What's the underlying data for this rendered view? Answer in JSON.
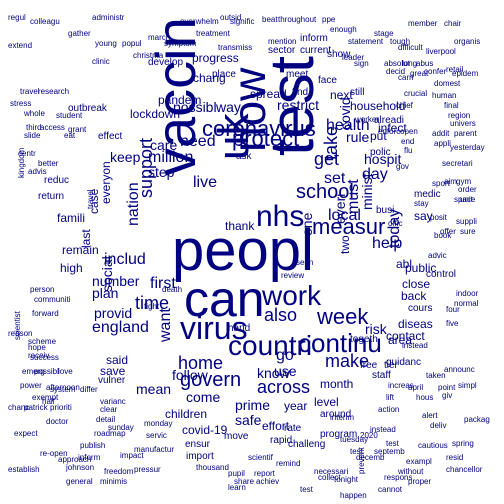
{
  "title": "",
  "colors": {
    "background": "#ffffff",
    "word": "#000080"
  },
  "words": [
    {
      "text": "peopl"
    },
    {
      "text": "test"
    },
    {
      "text": "vaccin"
    },
    {
      "text": "can"
    },
    {
      "text": "uk"
    },
    {
      "text": "now"
    },
    {
      "text": "nhs"
    },
    {
      "text": "virus"
    },
    {
      "text": "countri"
    },
    {
      "text": "work"
    },
    {
      "text": "coronavirus"
    },
    {
      "text": "continu"
    },
    {
      "text": "protect"
    },
    {
      "text": "week"
    },
    {
      "text": "measur"
    },
    {
      "text": "school"
    },
    {
      "text": "govern"
    },
    {
      "text": "across"
    },
    {
      "text": "support"
    },
    {
      "text": "also"
    },
    {
      "text": "home"
    },
    {
      "text": "time"
    },
    {
      "text": "get"
    },
    {
      "text": "take"
    },
    {
      "text": "make"
    },
    {
      "text": "health"
    },
    {
      "text": "million"
    },
    {
      "text": "need"
    },
    {
      "text": "includ"
    },
    {
      "text": "first"
    },
    {
      "text": "local"
    },
    {
      "text": "day"
    },
    {
      "text": "go"
    },
    {
      "text": "use"
    },
    {
      "text": "know"
    },
    {
      "text": "set"
    },
    {
      "text": "help"
    },
    {
      "text": "today"
    },
    {
      "text": "nation"
    },
    {
      "text": "say"
    },
    {
      "text": "hospit"
    },
    {
      "text": "come"
    },
    {
      "text": "one"
    },
    {
      "text": "way"
    },
    {
      "text": "possibl"
    },
    {
      "text": "live"
    },
    {
      "text": "step"
    },
    {
      "text": "keep"
    },
    {
      "text": "care"
    },
    {
      "text": "want"
    },
    {
      "text": "must"
    },
    {
      "text": "minist"
    },
    {
      "text": "everi"
    },
    {
      "text": "restrict"
    },
    {
      "text": "england"
    },
    {
      "text": "number"
    },
    {
      "text": "plan"
    },
    {
      "text": "provid"
    },
    {
      "text": "social"
    },
    {
      "text": "safe"
    },
    {
      "text": "prime"
    },
    {
      "text": "mean"
    },
    {
      "text": "children"
    },
    {
      "text": "year"
    },
    {
      "text": "month"
    },
    {
      "text": "level"
    },
    {
      "text": "risk"
    },
    {
      "text": "area"
    },
    {
      "text": "contact"
    },
    {
      "text": "diseas"
    },
    {
      "text": "back"
    },
    {
      "text": "close"
    },
    {
      "text": "public"
    },
    {
      "text": "rule"
    },
    {
      "text": "put"
    },
    {
      "text": "pandem"
    },
    {
      "text": "lockdown"
    },
    {
      "text": "follow"
    },
    {
      "text": "effort"
    },
    {
      "text": "two"
    },
    {
      "text": "abl"
    },
    {
      "text": "remain"
    },
    {
      "text": "high"
    },
    {
      "text": "last"
    },
    {
      "text": "case"
    },
    {
      "text": "everyon"
    },
    {
      "text": "covid"
    },
    {
      "text": "covid-19"
    },
    {
      "text": "save"
    },
    {
      "text": "said"
    },
    {
      "text": "vulner"
    },
    {
      "text": "program"
    },
    {
      "text": "around"
    },
    {
      "text": "staff"
    },
    {
      "text": "free"
    },
    {
      "text": "tier"
    },
    {
      "text": "togeth"
    },
    {
      "text": "infect"
    },
    {
      "text": "household"
    },
    {
      "text": "spread"
    },
    {
      "text": "thank"
    },
    {
      "text": "ask"
    },
    {
      "text": "find"
    },
    {
      "text": "face"
    },
    {
      "text": "place"
    },
    {
      "text": "meet"
    },
    {
      "text": "next"
    },
    {
      "text": "still"
    },
    {
      "text": "busi"
    },
    {
      "text": "hand"
    },
    {
      "text": "review"
    },
    {
      "text": "death"
    },
    {
      "text": "fight"
    },
    {
      "text": "seen"
    },
    {
      "text": "current"
    },
    {
      "text": "inform"
    },
    {
      "text": "sector"
    },
    {
      "text": "progress"
    },
    {
      "text": "chang"
    },
    {
      "text": "develop"
    },
    {
      "text": "travel"
    },
    {
      "text": "outbreak"
    },
    {
      "text": "famili"
    },
    {
      "text": "move"
    },
    {
      "text": "rate"
    },
    {
      "text": "ensur"
    },
    {
      "text": "rapid"
    },
    {
      "text": "import"
    },
    {
      "text": "challeng"
    },
    {
      "text": "scientif"
    },
    {
      "text": "instead"
    },
    {
      "text": "cours"
    },
    {
      "text": "control"
    },
    {
      "text": "guidanc"
    },
    {
      "text": "medic"
    },
    {
      "text": "alreadi"
    },
    {
      "text": "polic"
    },
    {
      "text": "gov"
    },
    {
      "text": "pressur"
    },
    {
      "text": "freedom"
    },
    {
      "text": "chief"
    },
    {
      "text": "appli"
    },
    {
      "text": "enforc"
    },
    {
      "text": "open"
    },
    {
      "text": "end"
    },
    {
      "text": "show"
    },
    {
      "text": "sign"
    },
    {
      "text": "offic"
    },
    {
      "text": "advic"
    },
    {
      "text": "flu"
    },
    {
      "text": "book"
    },
    {
      "text": "posit"
    },
    {
      "text": "stay"
    },
    {
      "text": "access"
    },
    {
      "text": "worker"
    },
    {
      "text": "clinic"
    },
    {
      "text": "reduc"
    },
    {
      "text": "effect"
    },
    {
      "text": "return"
    },
    {
      "text": "person"
    },
    {
      "text": "communiti"
    },
    {
      "text": "student"
    },
    {
      "text": "forward"
    },
    {
      "text": "christma"
    },
    {
      "text": "research"
    },
    {
      "text": "five"
    },
    {
      "text": "four"
    },
    {
      "text": "indoor"
    },
    {
      "text": "normal"
    },
    {
      "text": "increas"
    },
    {
      "text": "action"
    },
    {
      "text": "announc"
    },
    {
      "text": "exempt"
    },
    {
      "text": "varianc"
    },
    {
      "text": "clear"
    },
    {
      "text": "manufactur"
    },
    {
      "text": "inform"
    },
    {
      "text": "servic"
    },
    {
      "text": "monday"
    },
    {
      "text": "tuesday"
    },
    {
      "text": "test"
    },
    {
      "text": "overwhelm"
    },
    {
      "text": "treatment"
    },
    {
      "text": "symptom"
    },
    {
      "text": "gather"
    },
    {
      "text": "extend"
    },
    {
      "text": "young"
    },
    {
      "text": "popul"
    },
    {
      "text": "march"
    },
    {
      "text": "transmiss"
    },
    {
      "text": "mention"
    },
    {
      "text": "signific"
    },
    {
      "text": "throughout"
    },
    {
      "text": "enough"
    },
    {
      "text": "statement"
    },
    {
      "text": "difficult"
    },
    {
      "text": "absolut"
    },
    {
      "text": "chair"
    },
    {
      "text": "organis"
    },
    {
      "text": "liverpool"
    },
    {
      "text": "member"
    },
    {
      "text": "crucial"
    },
    {
      "text": "leader"
    },
    {
      "text": "retail"
    },
    {
      "text": "epidem"
    },
    {
      "text": "domest"
    },
    {
      "text": "human"
    },
    {
      "text": "final"
    },
    {
      "text": "region"
    },
    {
      "text": "univers"
    },
    {
      "text": "addit"
    },
    {
      "text": "parent"
    },
    {
      "text": "yesterday"
    },
    {
      "text": "secretari"
    },
    {
      "text": "aim"
    },
    {
      "text": "gym"
    },
    {
      "text": "order"
    },
    {
      "text": "space"
    },
    {
      "text": "sport"
    },
    {
      "text": "suppli"
    },
    {
      "text": "offer"
    },
    {
      "text": "sure"
    },
    {
      "text": "unit"
    },
    {
      "text": "regul"
    },
    {
      "text": "colleagu"
    },
    {
      "text": "administr"
    },
    {
      "text": "outsid"
    },
    {
      "text": "beat"
    },
    {
      "text": "ppe"
    },
    {
      "text": "stage"
    },
    {
      "text": "tough"
    },
    {
      "text": "long"
    },
    {
      "text": "abus"
    },
    {
      "text": "carri"
    },
    {
      "text": "great"
    },
    {
      "text": "confer"
    },
    {
      "text": "decid"
    },
    {
      "text": "stress"
    },
    {
      "text": "third"
    },
    {
      "text": "whole"
    },
    {
      "text": "travel"
    },
    {
      "text": "grant"
    },
    {
      "text": "eat"
    },
    {
      "text": "slide"
    },
    {
      "text": "centr"
    },
    {
      "text": "better"
    },
    {
      "text": "kingdom"
    },
    {
      "text": "advis"
    },
    {
      "text": "reason"
    },
    {
      "text": "receiv"
    },
    {
      "text": "scientist"
    },
    {
      "text": "scheme"
    },
    {
      "text": "possibl"
    },
    {
      "text": "chanc"
    },
    {
      "text": "establish"
    },
    {
      "text": "general"
    },
    {
      "text": "johnson"
    },
    {
      "text": "minimis"
    },
    {
      "text": "patrick"
    },
    {
      "text": "prioriti"
    },
    {
      "text": "power"
    },
    {
      "text": "afternoon"
    },
    {
      "text": "expect"
    },
    {
      "text": "interim"
    },
    {
      "text": "publish"
    },
    {
      "text": "impact"
    },
    {
      "text": "thousand"
    },
    {
      "text": "pupil"
    },
    {
      "text": "report"
    },
    {
      "text": "remind"
    },
    {
      "text": "necessari"
    },
    {
      "text": "decemb"
    },
    {
      "text": "spring"
    },
    {
      "text": "cautious"
    },
    {
      "text": "chancellor"
    },
    {
      "text": "exampl"
    },
    {
      "text": "resid"
    },
    {
      "text": "packag"
    },
    {
      "text": "giv"
    },
    {
      "text": "simpl"
    },
    {
      "text": "point"
    },
    {
      "text": "taken"
    },
    {
      "text": "deliv"
    },
    {
      "text": "hous"
    },
    {
      "text": "april"
    },
    {
      "text": "lift"
    },
    {
      "text": "alert"
    },
    {
      "text": "collect"
    },
    {
      "text": "prevent"
    },
    {
      "text": "respons"
    },
    {
      "text": "proper"
    },
    {
      "text": "instead"
    },
    {
      "text": "hope"
    },
    {
      "text": "success"
    },
    {
      "text": "love"
    },
    {
      "text": "emerg"
    },
    {
      "text": "system"
    },
    {
      "text": "differ"
    },
    {
      "text": "half"
    },
    {
      "text": "detail"
    },
    {
      "text": "sunday"
    },
    {
      "text": "roadmap"
    },
    {
      "text": "share"
    },
    {
      "text": "achiev"
    },
    {
      "text": "learn"
    },
    {
      "text": "re-open"
    },
    {
      "text": "approach"
    },
    {
      "text": "doctor"
    },
    {
      "text": "test"
    },
    {
      "text": "septemb"
    },
    {
      "text": "2020"
    },
    {
      "text": "tonight"
    },
    {
      "text": "cannot"
    },
    {
      "text": "test"
    },
    {
      "text": "without"
    },
    {
      "text": "happen"
    }
  ]
}
